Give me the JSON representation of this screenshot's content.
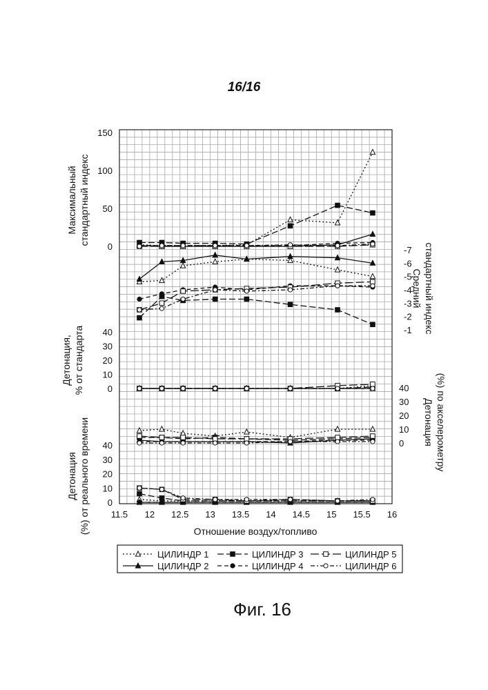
{
  "page": {
    "number": "16/16",
    "caption": "Фиг. 16"
  },
  "chart_data": {
    "type": "line",
    "xlabel": "Отношение воздух/топливо",
    "x_ticks": [
      "11.5",
      "12",
      "12.5",
      "13",
      "13.5",
      "14",
      "14.5",
      "15",
      "15.5",
      "16"
    ],
    "xlim": [
      11.5,
      16
    ],
    "x": [
      11.83,
      12.2,
      12.55,
      13.08,
      13.6,
      14.32,
      15.1,
      15.68
    ],
    "grid": true,
    "legend_position": "bottom",
    "panels": [
      {
        "id": "max-std-index",
        "ylabel": [
          "Максимальный",
          "стандартный индекс"
        ],
        "y_ticks": [
          "0",
          "50",
          "100",
          "150"
        ],
        "ylim": [
          0,
          150
        ],
        "series": [
          {
            "name": "ЦИЛИНДР 1",
            "values": [
              2,
              1,
              1,
              1,
              2,
              35,
              31,
              124
            ]
          },
          {
            "name": "ЦИЛИНДР 2",
            "values": [
              1,
              0,
              0,
              0,
              0,
              0,
              2,
              16
            ]
          },
          {
            "name": "ЦИЛИНДР 3",
            "values": [
              5,
              5,
              4,
              4,
              3,
              27,
              54,
              44
            ]
          },
          {
            "name": "ЦИЛИНДР 4",
            "values": [
              1,
              1,
              1,
              1,
              1,
              1,
              4,
              5
            ]
          },
          {
            "name": "ЦИЛИНДР 5",
            "values": [
              0,
              0,
              0,
              0,
              0,
              0,
              0,
              2
            ]
          },
          {
            "name": "ЦИЛИНДР 6",
            "values": [
              0,
              1,
              1,
              1,
              1,
              2,
              1,
              3
            ]
          }
        ]
      },
      {
        "id": "avg-std-index",
        "ylabel": [
          "Средний",
          "стандартный индекс"
        ],
        "y_ticks": [
          "-1",
          "-2",
          "-3",
          "-4",
          "-5",
          "-6",
          "-7"
        ],
        "ylim": [
          -7,
          -1
        ],
        "series": [
          {
            "name": "ЦИЛИНДР 1",
            "values": [
              -4.6,
              -4.7,
              -5.8,
              -6.1,
              -6.3,
              -6.2,
              -5.5,
              -5.0
            ]
          },
          {
            "name": "ЦИЛИНДР 2",
            "values": [
              -4.8,
              -6.1,
              -6.2,
              -6.6,
              -6.3,
              -6.5,
              -6.4,
              -6.0
            ]
          },
          {
            "name": "ЦИЛИНДР 3",
            "values": [
              -1.9,
              -3.5,
              -3.2,
              -3.3,
              -3.3,
              -2.9,
              -2.5,
              -1.4
            ]
          },
          {
            "name": "ЦИЛИНДР 4",
            "values": [
              -3.3,
              -3.7,
              -4.0,
              -4.2,
              -4.0,
              -4.3,
              -4.3,
              -4.2
            ]
          },
          {
            "name": "ЦИЛИНДР 5",
            "values": [
              -2.5,
              -3.0,
              -3.9,
              -4.0,
              -4.1,
              -4.2,
              -4.5,
              -4.6
            ]
          },
          {
            "name": "ЦИЛИНДР 6",
            "values": [
              -2.5,
              -2.6,
              -3.3,
              -4.0,
              -3.9,
              -4.0,
              -4.3,
              -4.3
            ]
          }
        ]
      },
      {
        "id": "knock-pct-std",
        "ylabel": [
          "Детонация,",
          "% от стандарта"
        ],
        "y_ticks": [
          "0",
          "10",
          "20",
          "30",
          "40"
        ],
        "ylim": [
          0,
          40
        ],
        "series": [
          {
            "name": "ЦИЛИНДР 1",
            "values": [
              0,
              0,
              0,
              0,
              0,
              0,
              0,
              2
            ]
          },
          {
            "name": "ЦИЛИНДР 2",
            "values": [
              0,
              0,
              0,
              0,
              0,
              0,
              0,
              0
            ]
          },
          {
            "name": "ЦИЛИНДР 3",
            "values": [
              0,
              0,
              0,
              0,
              0,
              0,
              0,
              1
            ]
          },
          {
            "name": "ЦИЛИНДР 4",
            "values": [
              0,
              0,
              0,
              0,
              0,
              0,
              0,
              0
            ]
          },
          {
            "name": "ЦИЛИНДР 5",
            "values": [
              0,
              0,
              0,
              0,
              0,
              0,
              2,
              3
            ]
          },
          {
            "name": "ЦИЛИНДР 6",
            "values": [
              0,
              0,
              0,
              0,
              0,
              0,
              0,
              0
            ]
          }
        ]
      },
      {
        "id": "knock-accel",
        "ylabel": [
          "Детонация",
          "(%) по акселерометру"
        ],
        "y_ticks": [
          "0",
          "10",
          "20",
          "30",
          "40"
        ],
        "ylim": [
          0,
          40
        ],
        "series": [
          {
            "name": "ЦИЛИНДР 1",
            "values": [
              9,
              10,
              7,
              5,
              8,
              4,
              10,
              10
            ]
          },
          {
            "name": "ЦИЛИНДР 2",
            "values": [
              2,
              1,
              1,
              1,
              1,
              0,
              2,
              3
            ]
          },
          {
            "name": "ЦИЛИНДР 3",
            "values": [
              4,
              4,
              3,
              4,
              3,
              2,
              3,
              4
            ]
          },
          {
            "name": "ЦИЛИНДР 4",
            "values": [
              1,
              1,
              1,
              1,
              1,
              1,
              2,
              2
            ]
          },
          {
            "name": "ЦИЛИНДР 5",
            "values": [
              5,
              4,
              4,
              3,
              3,
              3,
              4,
              5
            ]
          },
          {
            "name": "ЦИЛИНДР 6",
            "values": [
              0,
              0,
              0,
              0,
              0,
              1,
              1,
              1
            ]
          }
        ]
      },
      {
        "id": "knock-realtime",
        "ylabel": [
          "Детонация",
          "(%) от реального времени"
        ],
        "y_ticks": [
          "0",
          "10",
          "20",
          "30",
          "40"
        ],
        "ylim": [
          0,
          40
        ],
        "series": [
          {
            "name": "ЦИЛИНДР 1",
            "values": [
              2,
              1,
              1,
              1,
              1,
              1,
              1,
              1
            ]
          },
          {
            "name": "ЦИЛИНДР 2",
            "values": [
              0,
              0,
              0,
              0,
              0,
              0,
              0,
              0
            ]
          },
          {
            "name": "ЦИЛИНДР 3",
            "values": [
              6,
              3,
              1,
              1,
              1,
              1,
              1,
              1
            ]
          },
          {
            "name": "ЦИЛИНДР 4",
            "values": [
              0,
              0,
              0,
              0,
              0,
              0,
              0,
              0
            ]
          },
          {
            "name": "ЦИЛИНДР 5",
            "values": [
              10,
              9,
              2,
              2,
              1,
              2,
              1,
              1
            ]
          },
          {
            "name": "ЦИЛИНДР 6",
            "values": [
              10,
              9,
              3,
              2,
              2,
              2,
              1,
              2
            ]
          }
        ]
      }
    ],
    "legend": [
      {
        "name": "ЦИЛИНДР 1",
        "marker": "triangle-open",
        "dash": "dotted"
      },
      {
        "name": "ЦИЛИНДР 2",
        "marker": "triangle-filled",
        "dash": "solid"
      },
      {
        "name": "ЦИЛИНДР 3",
        "marker": "square-filled",
        "dash": "long-dash"
      },
      {
        "name": "ЦИЛИНДР 4",
        "marker": "circle-filled",
        "dash": "dash"
      },
      {
        "name": "ЦИЛИНДР 5",
        "marker": "square-open",
        "dash": "long-dash-gap"
      },
      {
        "name": "ЦИЛИНДР 6",
        "marker": "circle-open",
        "dash": "dash-dot"
      }
    ]
  }
}
